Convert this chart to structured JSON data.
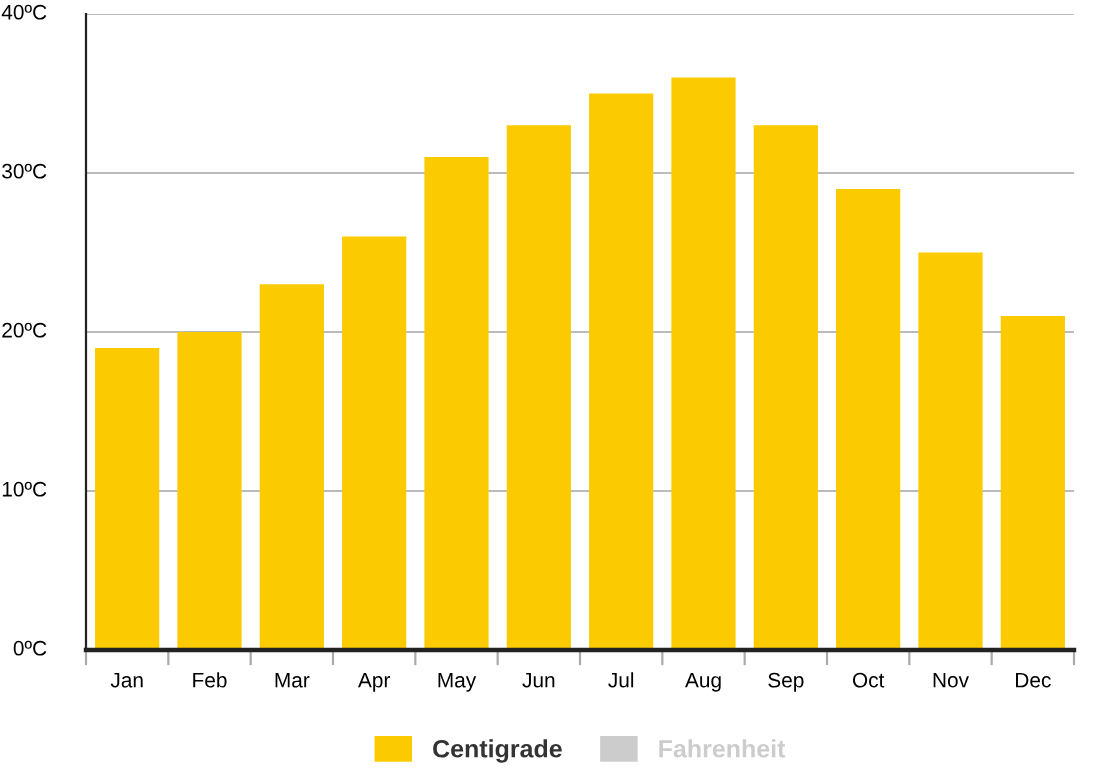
{
  "chart_data": {
    "type": "bar",
    "categories": [
      "Jan",
      "Feb",
      "Mar",
      "Apr",
      "May",
      "Jun",
      "Jul",
      "Aug",
      "Sep",
      "Oct",
      "Nov",
      "Dec"
    ],
    "series": [
      {
        "name": "Centigrade",
        "color": "#fbca00",
        "values": [
          19,
          20,
          23,
          26,
          31,
          33,
          35,
          36,
          33,
          29,
          25,
          21
        ]
      },
      {
        "name": "Fahrenheit",
        "color": "#cccccc",
        "values": [
          null,
          null,
          null,
          null,
          null,
          null,
          null,
          null,
          null,
          null,
          null,
          null
        ]
      }
    ],
    "ylim": [
      0,
      40
    ],
    "yticks": [
      {
        "value": 0,
        "label": "0ºC"
      },
      {
        "value": 10,
        "label": "10ºC"
      },
      {
        "value": 20,
        "label": "20ºC"
      },
      {
        "value": 30,
        "label": "30ºC"
      },
      {
        "value": 40,
        "label": "40ºC"
      }
    ],
    "grid": "y",
    "legend": "bottom"
  }
}
